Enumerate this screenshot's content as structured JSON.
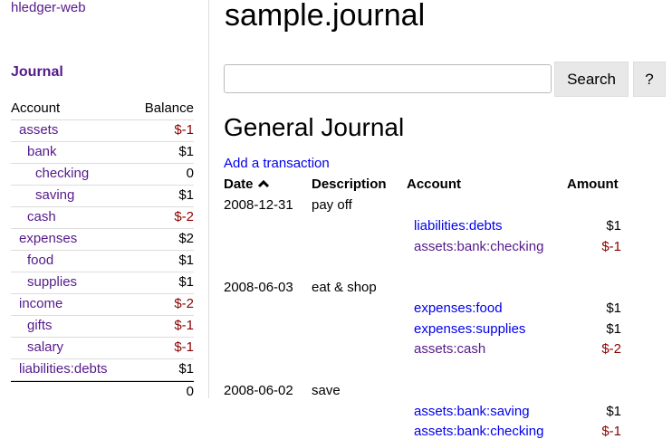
{
  "sidebar": {
    "brand": "hledger-web",
    "journal_link": "Journal",
    "headers": {
      "account": "Account",
      "balance": "Balance"
    },
    "accounts": [
      {
        "name": "assets",
        "balance": "$-1",
        "depth": 0,
        "neg": true
      },
      {
        "name": "bank",
        "balance": "$1",
        "depth": 1,
        "neg": false
      },
      {
        "name": "checking",
        "balance": "0",
        "depth": 2,
        "neg": false
      },
      {
        "name": "saving",
        "balance": "$1",
        "depth": 2,
        "neg": false
      },
      {
        "name": "cash",
        "balance": "$-2",
        "depth": 1,
        "neg": true
      },
      {
        "name": "expenses",
        "balance": "$2",
        "depth": 0,
        "neg": false
      },
      {
        "name": "food",
        "balance": "$1",
        "depth": 1,
        "neg": false
      },
      {
        "name": "supplies",
        "balance": "$1",
        "depth": 1,
        "neg": false
      },
      {
        "name": "income",
        "balance": "$-2",
        "depth": 0,
        "neg": true
      },
      {
        "name": "gifts",
        "balance": "$-1",
        "depth": 1,
        "neg": true
      },
      {
        "name": "salary",
        "balance": "$-1",
        "depth": 1,
        "neg": true
      },
      {
        "name": "liabilities:debts",
        "balance": "$1",
        "depth": 0,
        "neg": false
      }
    ],
    "total": "0"
  },
  "main": {
    "title": "sample.journal",
    "search": {
      "value": "",
      "placeholder": ""
    },
    "search_label": "Search",
    "help_label": "?",
    "heading": "General Journal",
    "add_link": "Add a transaction",
    "columns": {
      "date": "Date",
      "sort_icon": "chevron-up-icon",
      "description": "Description",
      "account": "Account",
      "amount": "Amount"
    },
    "transactions": [
      {
        "date": "2008-12-31",
        "description": "pay off",
        "postings": [
          {
            "account": "liabilities:debts",
            "amount": "$1",
            "visited": false
          },
          {
            "account": "assets:bank:checking",
            "amount": "$-1",
            "visited": true
          }
        ]
      },
      {
        "date": "2008-06-03",
        "description": "eat & shop",
        "postings": [
          {
            "account": "expenses:food",
            "amount": "$1",
            "visited": false
          },
          {
            "account": "expenses:supplies",
            "amount": "$1",
            "visited": false
          },
          {
            "account": "assets:cash",
            "amount": "$-2",
            "visited": true
          }
        ]
      },
      {
        "date": "2008-06-02",
        "description": "save",
        "postings": [
          {
            "account": "assets:bank:saving",
            "amount": "$1",
            "visited": false
          },
          {
            "account": "assets:bank:checking",
            "amount": "$-1",
            "visited": false
          }
        ]
      }
    ]
  },
  "colors": {
    "visited": "#551a8b",
    "link": "#0000ee",
    "negative": "#8b0000"
  }
}
